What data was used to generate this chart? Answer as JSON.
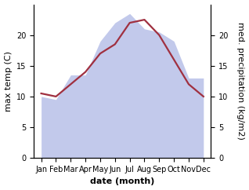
{
  "months": [
    "Jan",
    "Feb",
    "Mar",
    "Apr",
    "May",
    "Jun",
    "Jul",
    "Aug",
    "Sep",
    "Oct",
    "Nov",
    "Dec"
  ],
  "temperature": [
    10.5,
    10.0,
    12.0,
    14.0,
    17.0,
    18.5,
    22.0,
    22.5,
    20.0,
    16.0,
    12.0,
    10.0
  ],
  "precipitation": [
    10.0,
    9.5,
    13.5,
    13.5,
    19.0,
    22.0,
    23.5,
    21.0,
    20.5,
    19.0,
    13.0,
    13.0
  ],
  "temp_color": "#a03040",
  "precip_color": "#b8c0e8",
  "background_color": "#ffffff",
  "ylabel_left": "max temp (C)",
  "ylabel_right": "med. precipitation (kg/m2)",
  "xlabel": "date (month)",
  "ylim_left": [
    0,
    25
  ],
  "ylim_right": [
    0,
    25
  ],
  "yticks_left": [
    0,
    5,
    10,
    15,
    20
  ],
  "yticks_right": [
    0,
    5,
    10,
    15,
    20
  ],
  "label_fontsize": 8,
  "tick_fontsize": 7
}
